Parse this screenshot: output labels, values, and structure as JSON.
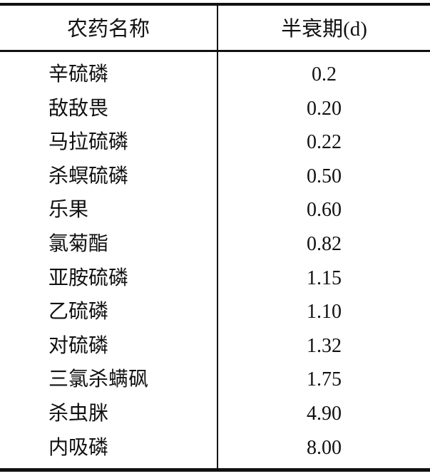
{
  "table": {
    "headers": [
      "农药名称",
      "半衰期(d)"
    ],
    "rows": [
      {
        "name": "辛硫磷",
        "half_life": "0.2"
      },
      {
        "name": "敌敌畏",
        "half_life": "0.20"
      },
      {
        "name": "马拉硫磷",
        "half_life": "0.22"
      },
      {
        "name": "杀螟硫磷",
        "half_life": "0.50"
      },
      {
        "name": "乐果",
        "half_life": "0.60"
      },
      {
        "name": "氯菊酯",
        "half_life": "0.82"
      },
      {
        "name": "亚胺硫磷",
        "half_life": "1.15"
      },
      {
        "name": "乙硫磷",
        "half_life": "1.10"
      },
      {
        "name": "对硫磷",
        "half_life": "1.32"
      },
      {
        "name": "三氯杀螨砜",
        "half_life": "1.75"
      },
      {
        "name": "杀虫脒",
        "half_life": "4.90"
      },
      {
        "name": "内吸磷",
        "half_life": "8.00"
      }
    ]
  }
}
